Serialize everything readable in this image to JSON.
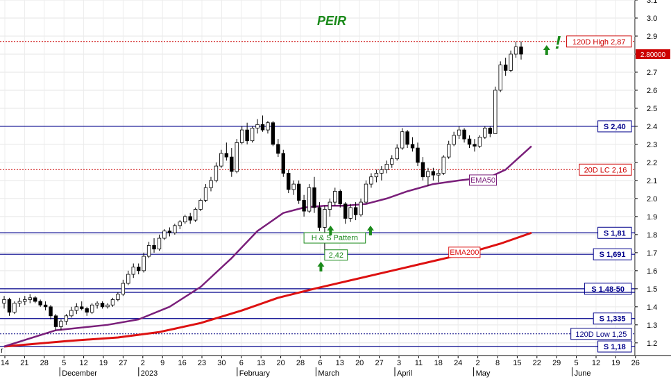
{
  "chart_data": {
    "type": "candlestick",
    "title": "PEIR",
    "ylim": [
      1.13,
      3.1
    ],
    "y_ticks": [
      1.2,
      1.3,
      1.4,
      1.5,
      1.6,
      1.7,
      1.8,
      1.9,
      2.0,
      2.1,
      2.2,
      2.3,
      2.4,
      2.5,
      2.6,
      2.7,
      2.8,
      2.9,
      3.0,
      3.1
    ],
    "y_tick_labels": [
      "1.2",
      "1.3",
      "1.4",
      "1.5",
      "1.6",
      "1.7",
      "1.8",
      "1.9",
      "2.0",
      "2.1",
      "2.2",
      "2.3",
      "2.4",
      "2.5",
      "2.6",
      "2.7",
      "2.8",
      "2.9",
      "3.0",
      "3.1"
    ],
    "x_tick_labels": [
      "14",
      "21",
      "28",
      "5",
      "12",
      "19",
      "27",
      "2",
      "9",
      "16",
      "23",
      "30",
      "6",
      "13",
      "20",
      "28",
      "6",
      "13",
      "20",
      "27",
      "3",
      "11",
      "18",
      "24",
      "2",
      "8",
      "15",
      "22",
      "29",
      "5",
      "12",
      "19",
      "26"
    ],
    "month_labels": [
      {
        "text": "December",
        "tick": 3
      },
      {
        "text": "2023",
        "tick": 7
      },
      {
        "text": "February",
        "tick": 12
      },
      {
        "text": "March",
        "tick": 16
      },
      {
        "text": "April",
        "tick": 20
      },
      {
        "text": "May",
        "tick": 24
      },
      {
        "text": "June",
        "tick": 29
      }
    ],
    "first_label_fragment": "r",
    "last_price": "2.80000",
    "candles": [
      {
        "o": 1.42,
        "h": 1.46,
        "l": 1.39,
        "c": 1.44
      },
      {
        "o": 1.44,
        "h": 1.45,
        "l": 1.35,
        "c": 1.37
      },
      {
        "o": 1.37,
        "h": 1.43,
        "l": 1.36,
        "c": 1.42
      },
      {
        "o": 1.42,
        "h": 1.45,
        "l": 1.4,
        "c": 1.43
      },
      {
        "o": 1.43,
        "h": 1.46,
        "l": 1.41,
        "c": 1.44
      },
      {
        "o": 1.44,
        "h": 1.47,
        "l": 1.42,
        "c": 1.45
      },
      {
        "o": 1.45,
        "h": 1.46,
        "l": 1.42,
        "c": 1.43
      },
      {
        "o": 1.43,
        "h": 1.44,
        "l": 1.4,
        "c": 1.41
      },
      {
        "o": 1.41,
        "h": 1.43,
        "l": 1.38,
        "c": 1.4
      },
      {
        "o": 1.4,
        "h": 1.41,
        "l": 1.33,
        "c": 1.35
      },
      {
        "o": 1.35,
        "h": 1.36,
        "l": 1.27,
        "c": 1.29
      },
      {
        "o": 1.29,
        "h": 1.33,
        "l": 1.27,
        "c": 1.32
      },
      {
        "o": 1.32,
        "h": 1.36,
        "l": 1.3,
        "c": 1.35
      },
      {
        "o": 1.35,
        "h": 1.4,
        "l": 1.34,
        "c": 1.38
      },
      {
        "o": 1.38,
        "h": 1.42,
        "l": 1.36,
        "c": 1.4
      },
      {
        "o": 1.4,
        "h": 1.43,
        "l": 1.38,
        "c": 1.39
      },
      {
        "o": 1.39,
        "h": 1.4,
        "l": 1.35,
        "c": 1.37
      },
      {
        "o": 1.37,
        "h": 1.42,
        "l": 1.36,
        "c": 1.41
      },
      {
        "o": 1.41,
        "h": 1.43,
        "l": 1.39,
        "c": 1.42
      },
      {
        "o": 1.42,
        "h": 1.43,
        "l": 1.39,
        "c": 1.4
      },
      {
        "o": 1.4,
        "h": 1.42,
        "l": 1.39,
        "c": 1.41
      },
      {
        "o": 1.41,
        "h": 1.45,
        "l": 1.4,
        "c": 1.44
      },
      {
        "o": 1.44,
        "h": 1.48,
        "l": 1.43,
        "c": 1.47
      },
      {
        "o": 1.47,
        "h": 1.55,
        "l": 1.46,
        "c": 1.53
      },
      {
        "o": 1.53,
        "h": 1.6,
        "l": 1.52,
        "c": 1.58
      },
      {
        "o": 1.58,
        "h": 1.64,
        "l": 1.56,
        "c": 1.62
      },
      {
        "o": 1.62,
        "h": 1.64,
        "l": 1.58,
        "c": 1.6
      },
      {
        "o": 1.6,
        "h": 1.7,
        "l": 1.59,
        "c": 1.68
      },
      {
        "o": 1.68,
        "h": 1.76,
        "l": 1.67,
        "c": 1.74
      },
      {
        "o": 1.74,
        "h": 1.78,
        "l": 1.7,
        "c": 1.72
      },
      {
        "o": 1.72,
        "h": 1.8,
        "l": 1.71,
        "c": 1.78
      },
      {
        "o": 1.78,
        "h": 1.83,
        "l": 1.77,
        "c": 1.82
      },
      {
        "o": 1.82,
        "h": 1.84,
        "l": 1.79,
        "c": 1.81
      },
      {
        "o": 1.81,
        "h": 1.86,
        "l": 1.8,
        "c": 1.85
      },
      {
        "o": 1.85,
        "h": 1.88,
        "l": 1.83,
        "c": 1.87
      },
      {
        "o": 1.87,
        "h": 1.91,
        "l": 1.86,
        "c": 1.9
      },
      {
        "o": 1.9,
        "h": 1.92,
        "l": 1.86,
        "c": 1.88
      },
      {
        "o": 1.88,
        "h": 1.95,
        "l": 1.87,
        "c": 1.94
      },
      {
        "o": 1.94,
        "h": 2.0,
        "l": 1.93,
        "c": 1.99
      },
      {
        "o": 1.99,
        "h": 2.08,
        "l": 1.98,
        "c": 2.06
      },
      {
        "o": 2.06,
        "h": 2.12,
        "l": 2.04,
        "c": 2.1
      },
      {
        "o": 2.1,
        "h": 2.2,
        "l": 2.09,
        "c": 2.18
      },
      {
        "o": 2.18,
        "h": 2.27,
        "l": 2.17,
        "c": 2.25
      },
      {
        "o": 2.25,
        "h": 2.31,
        "l": 2.21,
        "c": 2.23
      },
      {
        "o": 2.23,
        "h": 2.28,
        "l": 2.12,
        "c": 2.15
      },
      {
        "o": 2.15,
        "h": 2.33,
        "l": 2.14,
        "c": 2.31
      },
      {
        "o": 2.31,
        "h": 2.4,
        "l": 2.3,
        "c": 2.38
      },
      {
        "o": 2.38,
        "h": 2.42,
        "l": 2.3,
        "c": 2.32
      },
      {
        "o": 2.32,
        "h": 2.4,
        "l": 2.31,
        "c": 2.39
      },
      {
        "o": 2.39,
        "h": 2.44,
        "l": 2.36,
        "c": 2.41
      },
      {
        "o": 2.41,
        "h": 2.46,
        "l": 2.37,
        "c": 2.38
      },
      {
        "o": 2.38,
        "h": 2.43,
        "l": 2.36,
        "c": 2.42
      },
      {
        "o": 2.42,
        "h": 2.43,
        "l": 2.29,
        "c": 2.3
      },
      {
        "o": 2.3,
        "h": 2.33,
        "l": 2.23,
        "c": 2.25
      },
      {
        "o": 2.25,
        "h": 2.27,
        "l": 2.12,
        "c": 2.14
      },
      {
        "o": 2.14,
        "h": 2.16,
        "l": 2.03,
        "c": 2.05
      },
      {
        "o": 2.05,
        "h": 2.1,
        "l": 2.02,
        "c": 2.08
      },
      {
        "o": 2.08,
        "h": 2.1,
        "l": 1.97,
        "c": 1.99
      },
      {
        "o": 1.99,
        "h": 2.02,
        "l": 1.9,
        "c": 1.93
      },
      {
        "o": 1.93,
        "h": 2.08,
        "l": 1.92,
        "c": 2.06
      },
      {
        "o": 2.06,
        "h": 2.12,
        "l": 1.92,
        "c": 1.95
      },
      {
        "o": 1.95,
        "h": 1.98,
        "l": 1.82,
        "c": 1.84
      },
      {
        "o": 1.84,
        "h": 1.96,
        "l": 1.7,
        "c": 1.94
      },
      {
        "o": 1.94,
        "h": 2.0,
        "l": 1.9,
        "c": 1.98
      },
      {
        "o": 1.98,
        "h": 2.06,
        "l": 1.96,
        "c": 2.04
      },
      {
        "o": 2.04,
        "h": 2.05,
        "l": 1.95,
        "c": 1.97
      },
      {
        "o": 1.97,
        "h": 1.98,
        "l": 1.86,
        "c": 1.89
      },
      {
        "o": 1.89,
        "h": 1.97,
        "l": 1.87,
        "c": 1.95
      },
      {
        "o": 1.95,
        "h": 1.98,
        "l": 1.88,
        "c": 1.91
      },
      {
        "o": 1.91,
        "h": 2.0,
        "l": 1.9,
        "c": 1.98
      },
      {
        "o": 1.98,
        "h": 2.1,
        "l": 1.97,
        "c": 2.08
      },
      {
        "o": 2.08,
        "h": 2.14,
        "l": 2.06,
        "c": 2.12
      },
      {
        "o": 2.12,
        "h": 2.16,
        "l": 2.09,
        "c": 2.14
      },
      {
        "o": 2.14,
        "h": 2.18,
        "l": 2.1,
        "c": 2.16
      },
      {
        "o": 2.16,
        "h": 2.21,
        "l": 2.14,
        "c": 2.19
      },
      {
        "o": 2.19,
        "h": 2.24,
        "l": 2.17,
        "c": 2.22
      },
      {
        "o": 2.22,
        "h": 2.3,
        "l": 2.21,
        "c": 2.28
      },
      {
        "o": 2.28,
        "h": 2.39,
        "l": 2.27,
        "c": 2.37
      },
      {
        "o": 2.37,
        "h": 2.38,
        "l": 2.28,
        "c": 2.3
      },
      {
        "o": 2.3,
        "h": 2.34,
        "l": 2.26,
        "c": 2.28
      },
      {
        "o": 2.28,
        "h": 2.31,
        "l": 2.18,
        "c": 2.2
      },
      {
        "o": 2.2,
        "h": 2.23,
        "l": 2.1,
        "c": 2.12
      },
      {
        "o": 2.12,
        "h": 2.17,
        "l": 2.07,
        "c": 2.15
      },
      {
        "o": 2.15,
        "h": 2.17,
        "l": 2.1,
        "c": 2.13
      },
      {
        "o": 2.13,
        "h": 2.16,
        "l": 2.09,
        "c": 2.14
      },
      {
        "o": 2.14,
        "h": 2.24,
        "l": 2.13,
        "c": 2.23
      },
      {
        "o": 2.23,
        "h": 2.32,
        "l": 2.22,
        "c": 2.3
      },
      {
        "o": 2.3,
        "h": 2.37,
        "l": 2.29,
        "c": 2.35
      },
      {
        "o": 2.35,
        "h": 2.4,
        "l": 2.33,
        "c": 2.38
      },
      {
        "o": 2.38,
        "h": 2.39,
        "l": 2.31,
        "c": 2.33
      },
      {
        "o": 2.33,
        "h": 2.35,
        "l": 2.28,
        "c": 2.3
      },
      {
        "o": 2.3,
        "h": 2.33,
        "l": 2.26,
        "c": 2.29
      },
      {
        "o": 2.29,
        "h": 2.35,
        "l": 2.28,
        "c": 2.34
      },
      {
        "o": 2.34,
        "h": 2.4,
        "l": 2.33,
        "c": 2.39
      },
      {
        "o": 2.39,
        "h": 2.4,
        "l": 2.34,
        "c": 2.36
      },
      {
        "o": 2.36,
        "h": 2.62,
        "l": 2.36,
        "c": 2.6
      },
      {
        "o": 2.6,
        "h": 2.76,
        "l": 2.59,
        "c": 2.74
      },
      {
        "o": 2.74,
        "h": 2.78,
        "l": 2.68,
        "c": 2.71
      },
      {
        "o": 2.71,
        "h": 2.82,
        "l": 2.7,
        "c": 2.8
      },
      {
        "o": 2.8,
        "h": 2.87,
        "l": 2.78,
        "c": 2.84
      },
      {
        "o": 2.84,
        "h": 2.87,
        "l": 2.77,
        "c": 2.8
      }
    ],
    "ema50": [
      [
        0,
        1.18
      ],
      [
        10,
        1.27
      ],
      [
        20,
        1.3
      ],
      [
        26,
        1.33
      ],
      [
        32,
        1.4
      ],
      [
        38,
        1.51
      ],
      [
        44,
        1.67
      ],
      [
        49,
        1.82
      ],
      [
        54,
        1.92
      ],
      [
        58,
        1.95
      ],
      [
        62,
        1.96
      ],
      [
        66,
        1.96
      ],
      [
        70,
        1.97
      ],
      [
        74,
        2.0
      ],
      [
        78,
        2.04
      ],
      [
        83,
        2.08
      ],
      [
        88,
        2.1
      ],
      [
        94,
        2.12
      ],
      [
        97,
        2.16
      ],
      [
        102,
        2.29
      ]
    ],
    "ema200": [
      [
        0,
        1.18
      ],
      [
        12,
        1.21
      ],
      [
        22,
        1.23
      ],
      [
        30,
        1.26
      ],
      [
        38,
        1.31
      ],
      [
        46,
        1.38
      ],
      [
        53,
        1.45
      ],
      [
        60,
        1.5
      ],
      [
        66,
        1.54
      ],
      [
        72,
        1.58
      ],
      [
        78,
        1.62
      ],
      [
        84,
        1.66
      ],
      [
        90,
        1.7
      ],
      [
        96,
        1.75
      ],
      [
        102,
        1.81
      ]
    ],
    "support_lines": [
      {
        "value": 2.4,
        "label": "S 2,40"
      },
      {
        "value": 1.81,
        "label": "S 1,81"
      },
      {
        "value": 1.691,
        "label": "S 1,691"
      },
      {
        "value": 1.5,
        "label": "S 1,48-50"
      },
      {
        "value": 1.48,
        "label": ""
      },
      {
        "value": 1.335,
        "label": "S 1,335"
      },
      {
        "value": 1.18,
        "label": "S 1,18"
      }
    ],
    "dotted_levels": [
      {
        "value": 2.87,
        "label": "120D High 2,87",
        "color": "#cc0000"
      },
      {
        "value": 2.16,
        "label": "20D LC 2,16",
        "color": "#cc0000"
      },
      {
        "value": 1.25,
        "label": "120D Low 1,25",
        "color": "#000080"
      }
    ],
    "annotations": {
      "ema50_label": "EMA50",
      "ema200_label": "EMA200",
      "hs_pattern_label": "H & S Pattern",
      "low_value_label": "2,42",
      "exclaim": "!"
    },
    "colors": {
      "ema50": "#7a1f7a",
      "ema200": "#dd1111",
      "support": "#00008b",
      "up_candle": "#ffffff",
      "down_candle": "#000000",
      "title": "#1a8a1a",
      "arrow": "#1a8a1a"
    }
  }
}
